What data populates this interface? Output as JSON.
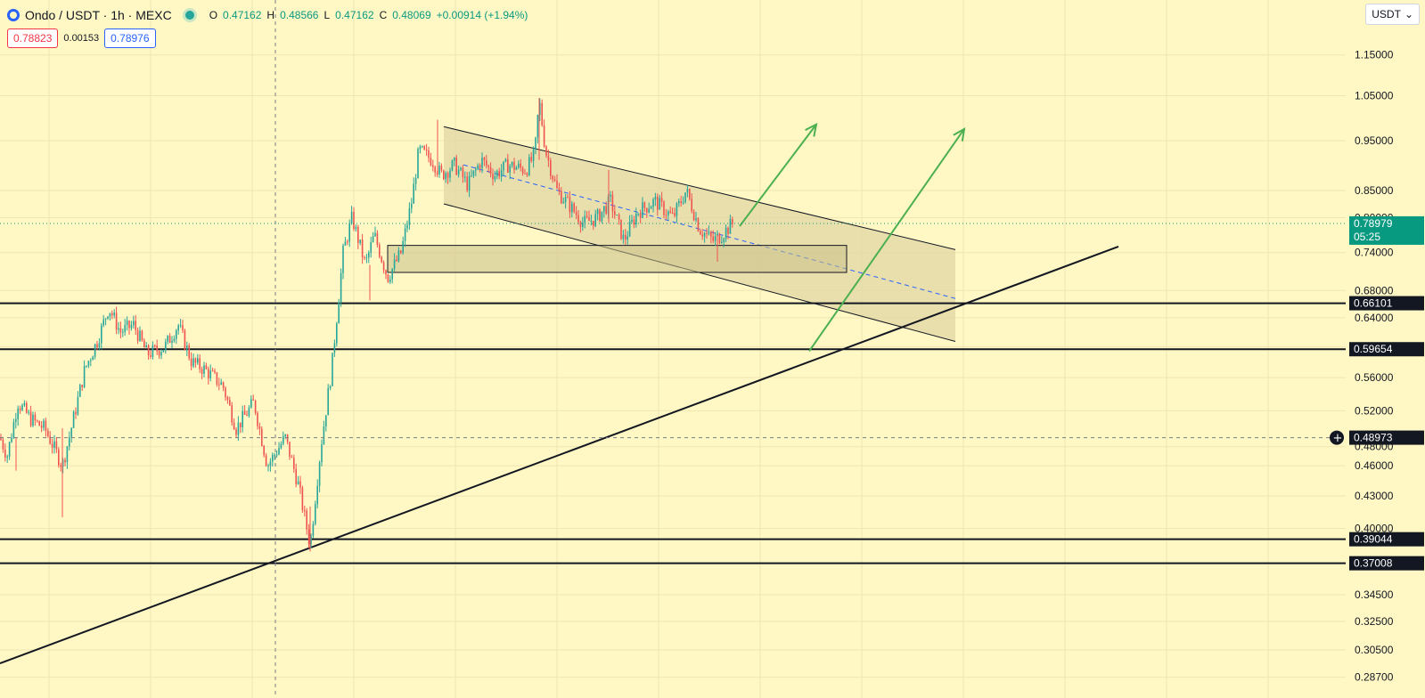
{
  "legend": {
    "title": "Ondo / USDT · 1h · MEXC",
    "o_label": "O",
    "o_value": "0.47162",
    "h_label": "H",
    "h_value": "0.48566",
    "l_label": "L",
    "l_value": "0.47162",
    "c_label": "C",
    "c_value": "0.48069",
    "change": "+0.00914 (+1.94%)"
  },
  "trade": {
    "sell": "0.78823",
    "spread": "0.00153",
    "buy": "0.78976"
  },
  "currency_button": "USDT",
  "colors": {
    "background": "#fff8c4",
    "up": "#26a69a",
    "down": "#ef5350",
    "channel_fill": "#e0d7a4",
    "arrow": "#4caf50",
    "midline": "#2962ff",
    "last_price_tag": "#089981"
  },
  "chart_data": {
    "type": "candlestick",
    "y_scale": "log",
    "ylim": [
      0.274,
      1.3
    ],
    "y_ticks": [
      "1.15000",
      "1.05000",
      "0.95000",
      "0.85000",
      "0.80000",
      "0.74000",
      "0.68000",
      "0.64000",
      "0.60000",
      "0.56000",
      "0.52000",
      "0.48000",
      "0.46000",
      "0.43000",
      "0.40000",
      "0.34500",
      "0.32500",
      "0.30500",
      "0.28700"
    ],
    "last_price": {
      "value": "0.78979",
      "countdown": "05:25"
    },
    "crosshair_price": "0.48973",
    "horizontal_levels": [
      "0.66101",
      "0.59654",
      "0.39044",
      "0.37008"
    ],
    "candle_path": [
      [
        0,
        0.49
      ],
      [
        8,
        0.47
      ],
      [
        20,
        0.53
      ],
      [
        35,
        0.51
      ],
      [
        50,
        0.5
      ],
      [
        60,
        0.48
      ],
      [
        70,
        0.46
      ],
      [
        80,
        0.5
      ],
      [
        95,
        0.57
      ],
      [
        110,
        0.61
      ],
      [
        122,
        0.655
      ],
      [
        135,
        0.62
      ],
      [
        150,
        0.63
      ],
      [
        165,
        0.59
      ],
      [
        185,
        0.6
      ],
      [
        200,
        0.63
      ],
      [
        215,
        0.58
      ],
      [
        230,
        0.57
      ],
      [
        250,
        0.55
      ],
      [
        265,
        0.5
      ],
      [
        285,
        0.53
      ],
      [
        300,
        0.46
      ],
      [
        320,
        0.49
      ],
      [
        335,
        0.44
      ],
      [
        348,
        0.385
      ],
      [
        360,
        0.48
      ],
      [
        372,
        0.57
      ],
      [
        385,
        0.74
      ],
      [
        395,
        0.8
      ],
      [
        410,
        0.72
      ],
      [
        420,
        0.77
      ],
      [
        435,
        0.7
      ],
      [
        450,
        0.74
      ],
      [
        462,
        0.83
      ],
      [
        470,
        0.93
      ],
      [
        485,
        0.91
      ],
      [
        495,
        0.88
      ],
      [
        510,
        0.9
      ],
      [
        525,
        0.86
      ],
      [
        540,
        0.91
      ],
      [
        555,
        0.88
      ],
      [
        570,
        0.9
      ],
      [
        590,
        0.89
      ],
      [
        600,
        0.92
      ],
      [
        605,
        1.04
      ],
      [
        612,
        0.93
      ],
      [
        625,
        0.85
      ],
      [
        640,
        0.82
      ],
      [
        655,
        0.79
      ],
      [
        670,
        0.8
      ],
      [
        685,
        0.83
      ],
      [
        700,
        0.76
      ],
      [
        715,
        0.81
      ],
      [
        735,
        0.83
      ],
      [
        755,
        0.8
      ],
      [
        770,
        0.85
      ],
      [
        785,
        0.78
      ],
      [
        800,
        0.76
      ],
      [
        810,
        0.77
      ],
      [
        822,
        0.79
      ]
    ],
    "channel": {
      "upper": [
        [
          498,
          0.98
        ],
        [
          1072,
          0.745
        ]
      ],
      "lower": [
        [
          498,
          0.825
        ],
        [
          1072,
          0.607
        ]
      ]
    },
    "channel_midline": [
      [
        520,
        0.9
      ],
      [
        1072,
        0.668
      ]
    ],
    "demand_zone": {
      "x": [
        435,
        950
      ],
      "y": [
        0.708,
        0.752
      ]
    },
    "trendline": [
      [
        0,
        0.296
      ],
      [
        1255,
        0.75
      ]
    ],
    "arrows": [
      {
        "from": [
          830,
          0.785
        ],
        "to": [
          916,
          0.985
        ]
      },
      {
        "from": [
          908,
          0.594
        ],
        "to": [
          1082,
          0.975
        ]
      }
    ],
    "crosshair_x": 309
  }
}
